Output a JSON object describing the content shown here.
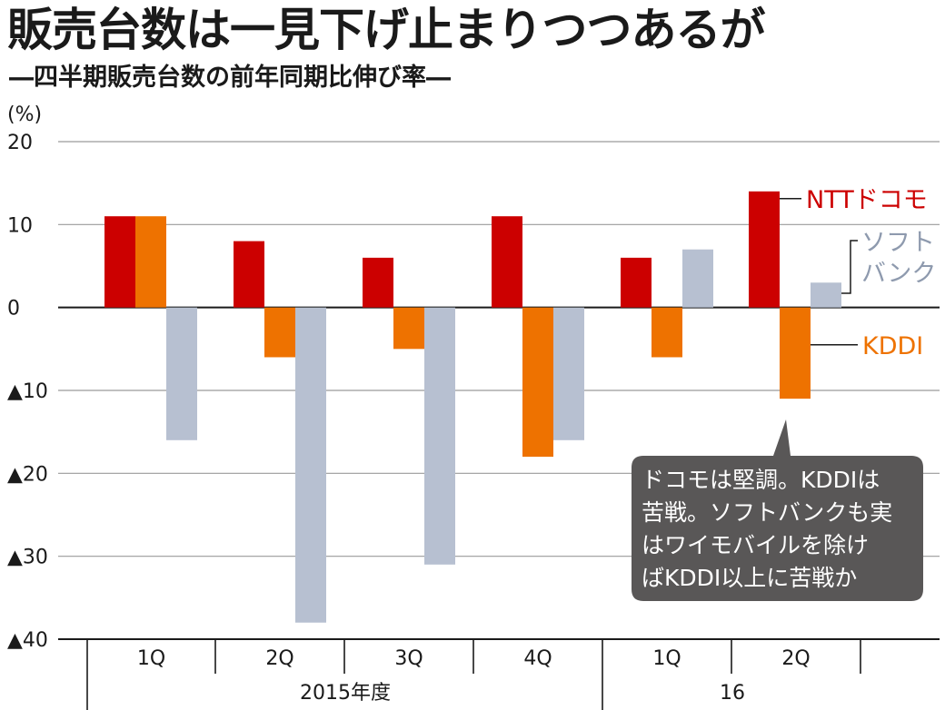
{
  "title": "販売台数は一見下げ止まりつつあるが",
  "subtitle": "―四半期販売台数の前年同期比伸び率―",
  "chart_data": {
    "type": "bar",
    "unit_label": "(%)",
    "categories": [
      "1Q",
      "2Q",
      "3Q",
      "4Q",
      "1Q",
      "2Q"
    ],
    "groups": [
      {
        "label": "2015年度",
        "span": [
          0,
          3
        ]
      },
      {
        "label": "16",
        "span": [
          4,
          5
        ]
      }
    ],
    "series": [
      {
        "name": "NTTドコモ",
        "color": "#cc0000",
        "values": [
          11,
          8,
          6,
          11,
          6,
          14
        ]
      },
      {
        "name": "KDDI",
        "color": "#ee7200",
        "values": [
          11,
          -6,
          -5,
          -18,
          -6,
          -11
        ]
      },
      {
        "name": "ソフトバンク",
        "color": "#b7c0d1",
        "values": [
          -16,
          -38,
          -31,
          -16,
          7,
          3
        ]
      }
    ],
    "ylim": [
      -40,
      20
    ],
    "yticks": [
      20,
      10,
      0,
      -10,
      -20,
      -30,
      -40
    ],
    "ytick_labels": [
      "20",
      "10",
      "0",
      "▲10",
      "▲20",
      "▲30",
      "▲40"
    ],
    "grid": true,
    "annotation": {
      "lines": [
        "ドコモは堅調。KDDIは",
        "苦戦。ソフトバンクも実",
        "はワイモバイルを除け",
        "ばKDDI以上に苦戦か"
      ],
      "background": "#595757"
    }
  }
}
